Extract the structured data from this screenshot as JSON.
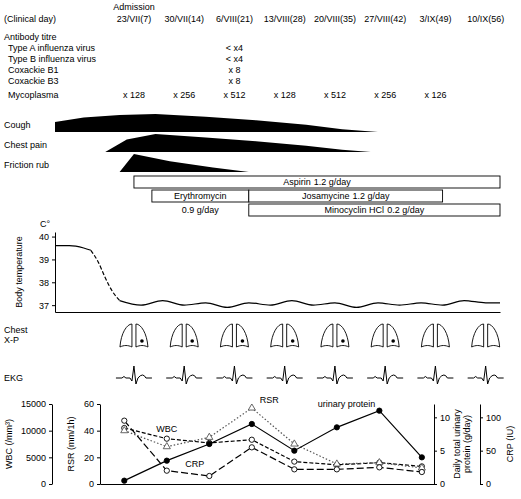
{
  "header": {
    "row_label": "(Clinical day)",
    "admission_label": "Admission",
    "admission_day": 7,
    "days": [
      7,
      14,
      21,
      28,
      35,
      42,
      49,
      56
    ],
    "date_labels": [
      "23/VII(7)",
      "30/VII(14)",
      "6/VIII(21)",
      "13/VIII(28)",
      "20/VIII(35)",
      "27/VIII(42)",
      "3/IX(49)",
      "10/IX(56)"
    ]
  },
  "antibody_titre": {
    "title": "Antibody titre",
    "rows": [
      {
        "name": "Type A influenza virus",
        "results": [
          {
            "day": 21,
            "label": "< x4"
          }
        ]
      },
      {
        "name": "Type B influenza virus",
        "results": [
          {
            "day": 21,
            "label": "< x4"
          }
        ]
      },
      {
        "name": "Coxackie B1",
        "results": [
          {
            "day": 21,
            "label": "x 8"
          }
        ]
      },
      {
        "name": "Coxackie B3",
        "results": [
          {
            "day": 21,
            "label": "x 8"
          }
        ]
      },
      {
        "name": "Mycoplasma",
        "results": [
          {
            "day": 7,
            "label": "x 128"
          },
          {
            "day": 14,
            "label": "x 256"
          },
          {
            "day": 21,
            "label": "x 512"
          },
          {
            "day": 28,
            "label": "x 128"
          },
          {
            "day": 35,
            "label": "x 512"
          },
          {
            "day": 42,
            "label": "x 256"
          },
          {
            "day": 49,
            "label": "x 126"
          }
        ]
      }
    ]
  },
  "symptoms": [
    {
      "name": "Cough",
      "color": "#000000",
      "x": [
        -4,
        0,
        5,
        10,
        17,
        24,
        31,
        36,
        41
      ],
      "intensity": [
        0.55,
        0.8,
        0.95,
        1.0,
        0.85,
        0.65,
        0.4,
        0.15,
        0
      ]
    },
    {
      "name": "Chest pain",
      "color": "#000000",
      "x": [
        3,
        6,
        10,
        17,
        24,
        31,
        36,
        40
      ],
      "intensity": [
        0,
        0.7,
        1.0,
        0.8,
        0.6,
        0.35,
        0.12,
        0
      ]
    },
    {
      "name": "Friction rub",
      "color": "#000000",
      "x": [
        5,
        7,
        12,
        18,
        23
      ],
      "intensity": [
        0,
        1.0,
        0.6,
        0.25,
        0
      ]
    }
  ],
  "treatments": [
    {
      "name": "Aspirin",
      "dose": "1.2 g/day",
      "start": 7,
      "end": 58
    },
    {
      "name": "Erythromycin",
      "dose": "0.9 g/day",
      "start": 9.5,
      "end": 23
    },
    {
      "name": "Josamycine",
      "dose": "1.2 g/day",
      "start": 23,
      "end": 50
    },
    {
      "name": "Minocyclin HCl",
      "dose": "0.2 g/day",
      "start": 23,
      "end": 58
    }
  ],
  "chest_xp": {
    "label": "Chest X-P",
    "days": [
      7,
      14,
      21,
      28,
      35,
      42,
      49,
      56
    ],
    "lesion": [
      true,
      true,
      true,
      true,
      true,
      true,
      false,
      false
    ]
  },
  "ekg": {
    "label": "EKG",
    "days": [
      7,
      14,
      21,
      28,
      35,
      42,
      49,
      56
    ]
  },
  "chart_data": [
    {
      "type": "line",
      "ylabel": "Body temperature",
      "yunit": "C°",
      "xlim": [
        -4,
        58
      ],
      "ylim": [
        36.7,
        40.2
      ],
      "yticks": [
        37,
        38,
        39,
        40
      ],
      "tick_labels": "y",
      "series": [
        {
          "color": "#000000",
          "line_style": "solid",
          "x": [
            -4,
            -2,
            0,
            1
          ],
          "values": [
            39.6,
            39.6,
            39.5,
            39.4
          ]
        },
        {
          "color": "#000000",
          "line_style": "dashed",
          "x": [
            1,
            2,
            3,
            4,
            5
          ],
          "values": [
            39.4,
            38.9,
            38.2,
            37.6,
            37.2
          ]
        },
        {
          "color": "#000000",
          "line_style": "solid",
          "x": [
            5,
            8,
            11,
            14,
            17,
            20,
            23,
            26,
            29,
            32,
            35,
            38,
            41,
            44,
            47,
            50,
            53,
            56,
            58
          ],
          "values": [
            37.2,
            37.0,
            37.2,
            37.0,
            37.1,
            36.9,
            37.1,
            37.0,
            37.2,
            37.0,
            37.1,
            36.9,
            37.1,
            37.0,
            37.1,
            37.0,
            37.2,
            37.1,
            37.1
          ]
        }
      ]
    },
    {
      "type": "line",
      "xlim": [
        3,
        58
      ],
      "x": [
        7,
        14,
        21,
        28,
        35,
        42,
        49,
        56
      ],
      "tick_labels": "y",
      "ylabel": "WBC (/mm³)",
      "ylim": [
        0,
        15000
      ],
      "yticks": [
        0,
        5000,
        10000,
        15000
      ],
      "y2label": "Daily total urinary protein (g/day)",
      "y2lim": [
        0,
        12
      ],
      "y2ticks": [
        0,
        5,
        10
      ],
      "y3label": "RSR (mm/1h)",
      "y3lim": [
        0,
        60
      ],
      "y3ticks": [
        0,
        20,
        40,
        60
      ],
      "y4label": "CRP (IU)",
      "y4lim": [
        0,
        120
      ],
      "y4ticks": [
        0,
        50,
        100
      ],
      "series": [
        {
          "name": "WBC",
          "color": "#000000",
          "line_style": "dashed",
          "marker": "circle-open",
          "axis": "y",
          "values": [
            10500,
            8500,
            7700,
            8300,
            4200,
            3600,
            4000,
            3300
          ]
        },
        {
          "name": "RSR",
          "color": "#555555",
          "line_style": "dotted",
          "marker": "triangle-open",
          "axis": "y3",
          "values": [
            40,
            28,
            35,
            57,
            30,
            15,
            16,
            12
          ]
        },
        {
          "name": "CRP",
          "color": "#000000",
          "line_style": "longdash",
          "marker": "circle-open",
          "axis": "y4",
          "values": [
            95,
            20,
            12,
            55,
            22,
            22,
            25,
            18
          ]
        },
        {
          "name": "urinary protein",
          "color": "#000000",
          "line_style": "solid",
          "marker": "circle",
          "axis": "y2",
          "values": [
            0.5,
            3.5,
            6,
            9,
            5,
            8.5,
            11,
            4
          ]
        }
      ]
    }
  ]
}
